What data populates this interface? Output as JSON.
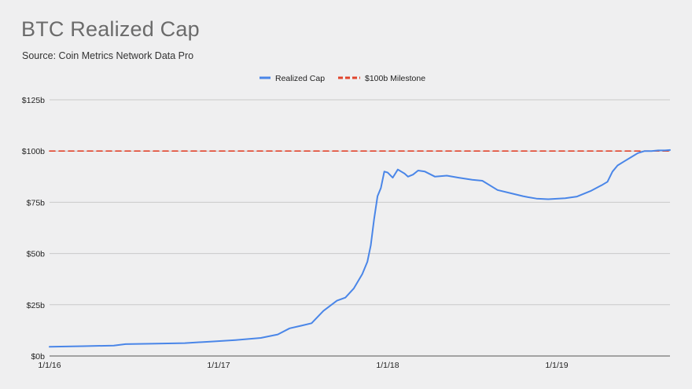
{
  "chart_data": {
    "type": "line",
    "title": "BTC Realized Cap",
    "subtitle": "Source: Coin Metrics Network Data Pro",
    "xlabel": "",
    "ylabel": "",
    "ylim": [
      0,
      125
    ],
    "y_ticks": [
      "$0b",
      "$25b",
      "$50b",
      "$75b",
      "$100b",
      "$125b"
    ],
    "y_tick_values": [
      0,
      25,
      50,
      75,
      100,
      125
    ],
    "x_ticks": [
      "1/1/16",
      "1/1/17",
      "1/1/18",
      "1/1/19"
    ],
    "x_tick_values": [
      2016.0,
      2017.0,
      2018.0,
      2019.0
    ],
    "xlim": [
      2016.0,
      2019.67
    ],
    "grid": true,
    "legend_position": "top-center",
    "series": [
      {
        "name": "Realized Cap",
        "color": "#4a86e8",
        "style": "solid",
        "x": [
          2016.0,
          2016.2,
          2016.38,
          2016.45,
          2016.6,
          2016.8,
          2016.95,
          2017.1,
          2017.25,
          2017.35,
          2017.42,
          2017.5,
          2017.55,
          2017.62,
          2017.7,
          2017.75,
          2017.8,
          2017.85,
          2017.88,
          2017.9,
          2017.92,
          2017.94,
          2017.96,
          2017.98,
          2018.0,
          2018.03,
          2018.06,
          2018.08,
          2018.1,
          2018.12,
          2018.15,
          2018.18,
          2018.22,
          2018.28,
          2018.35,
          2018.42,
          2018.5,
          2018.56,
          2018.65,
          2018.75,
          2018.8,
          2018.83,
          2018.88,
          2018.95,
          2019.05,
          2019.12,
          2019.2,
          2019.27,
          2019.3,
          2019.33,
          2019.36,
          2019.4,
          2019.44,
          2019.48,
          2019.52,
          2019.56,
          2019.6,
          2019.64,
          2019.67
        ],
        "values": [
          4.5,
          4.8,
          5.1,
          5.8,
          6.0,
          6.3,
          7.0,
          7.8,
          8.8,
          10.5,
          13.5,
          15.0,
          16.0,
          22.0,
          27.0,
          28.5,
          33.0,
          40.0,
          46.0,
          54.0,
          67.0,
          78.0,
          82.0,
          90.0,
          89.5,
          87.0,
          91.0,
          90.0,
          89.0,
          87.5,
          88.5,
          90.5,
          90.0,
          87.5,
          88.0,
          87.0,
          86.0,
          85.5,
          81.0,
          79.0,
          78.0,
          77.5,
          76.8,
          76.5,
          77.0,
          77.8,
          80.5,
          83.5,
          85.0,
          90.0,
          93.0,
          95.0,
          97.0,
          99.0,
          100.0,
          100.0,
          100.3,
          100.3,
          100.5
        ]
      },
      {
        "name": "$100b Milestone",
        "color": "#e0442c",
        "style": "dashed",
        "x": [
          2016.0,
          2019.67
        ],
        "values": [
          100,
          100
        ]
      }
    ]
  }
}
